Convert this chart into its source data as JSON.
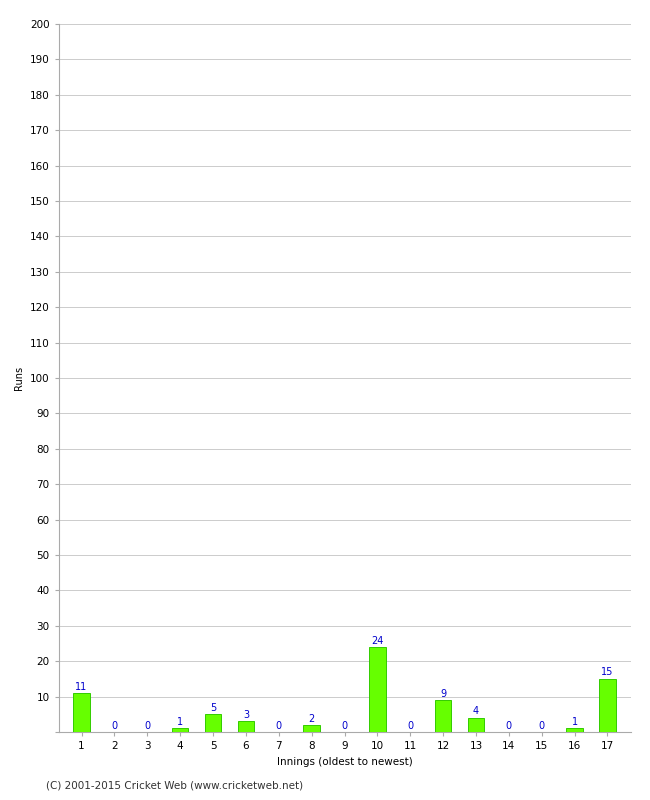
{
  "xlabel": "Innings (oldest to newest)",
  "ylabel": "Runs",
  "categories": [
    "1",
    "2",
    "3",
    "4",
    "5",
    "6",
    "7",
    "8",
    "9",
    "10",
    "11",
    "12",
    "13",
    "14",
    "15",
    "16",
    "17"
  ],
  "values": [
    11,
    0,
    0,
    1,
    5,
    3,
    0,
    2,
    0,
    24,
    0,
    9,
    4,
    0,
    0,
    1,
    15
  ],
  "bar_color": "#66ff00",
  "bar_edge_color": "#33cc00",
  "label_color": "#0000cc",
  "ylim": [
    0,
    200
  ],
  "yticks": [
    0,
    10,
    20,
    30,
    40,
    50,
    60,
    70,
    80,
    90,
    100,
    110,
    120,
    130,
    140,
    150,
    160,
    170,
    180,
    190,
    200
  ],
  "grid_color": "#cccccc",
  "background_color": "#ffffff",
  "footer": "(C) 2001-2015 Cricket Web (www.cricketweb.net)",
  "label_fontsize": 7,
  "axis_fontsize": 7.5,
  "ylabel_fontsize": 7,
  "footer_fontsize": 7.5
}
